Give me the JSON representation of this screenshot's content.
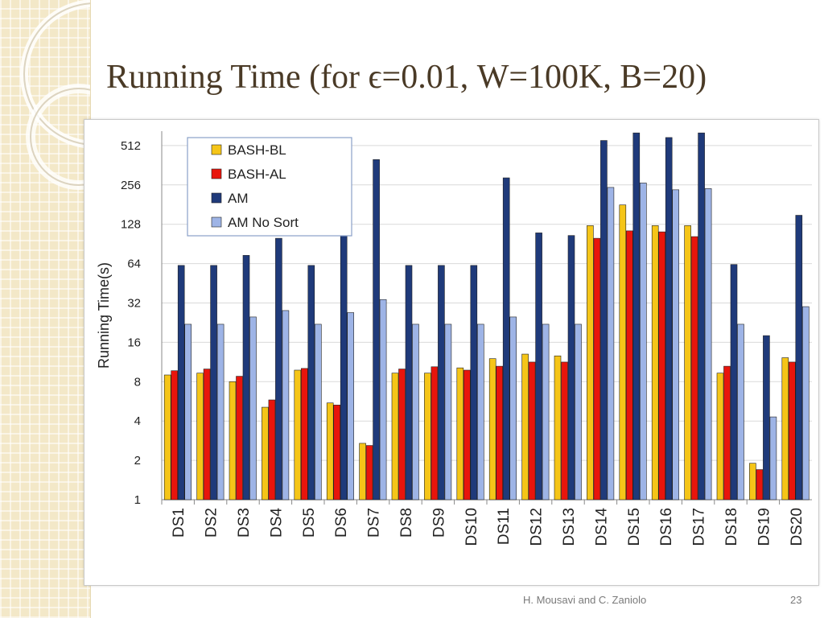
{
  "slide": {
    "title": "Running Time (for ϵ=0.01, W=100K, B=20)",
    "footer_author": "H. Mousavi and C. Zaniolo",
    "page_number": "23"
  },
  "chart_data": {
    "type": "bar",
    "title": "",
    "xlabel": "",
    "ylabel": "Running Time(s)",
    "y_scale": "log2",
    "ylim": [
      1,
      660
    ],
    "y_ticks": [
      1,
      2,
      4,
      8,
      16,
      32,
      64,
      128,
      256,
      512
    ],
    "y_tick_labels": [
      "1",
      "2",
      "4",
      "8",
      "16",
      "32",
      "64",
      "128",
      "256",
      "512"
    ],
    "grid": true,
    "legend_position": "top-left",
    "categories": [
      "DS1",
      "DS2",
      "DS3",
      "DS4",
      "DS5",
      "DS6",
      "DS7",
      "DS8",
      "DS9",
      "DS10",
      "DS11",
      "DS12",
      "DS13",
      "DS14",
      "DS15",
      "DS16",
      "DS17",
      "DS18",
      "DS19",
      "DS20"
    ],
    "series": [
      {
        "name": "BASH-BL",
        "color": "#f5c518",
        "values": [
          9,
          9.3,
          8,
          5.1,
          9.8,
          5.5,
          2.7,
          9.3,
          9.3,
          10.2,
          12,
          13,
          12.6,
          125,
          180,
          125,
          125,
          9.3,
          1.9,
          12.2
        ]
      },
      {
        "name": "BASH-AL",
        "color": "#e8150c",
        "values": [
          9.7,
          10,
          8.8,
          5.8,
          10.1,
          5.3,
          2.6,
          10,
          10.4,
          9.8,
          10.5,
          11.3,
          11.3,
          100,
          114,
          112,
          103,
          10.5,
          1.7,
          11.3
        ]
      },
      {
        "name": "AM",
        "color": "#1f3a7a",
        "values": [
          62,
          62,
          74,
          100,
          62,
          120,
          400,
          62,
          62,
          62,
          290,
          110,
          105,
          560,
          640,
          590,
          640,
          63,
          18,
          150
        ]
      },
      {
        "name": "AM No Sort",
        "color": "#9eb4e6",
        "values": [
          22,
          22,
          25,
          28,
          22,
          27,
          34,
          22,
          22,
          22,
          25,
          22,
          22,
          245,
          265,
          235,
          240,
          22,
          4.3,
          30
        ]
      }
    ]
  }
}
